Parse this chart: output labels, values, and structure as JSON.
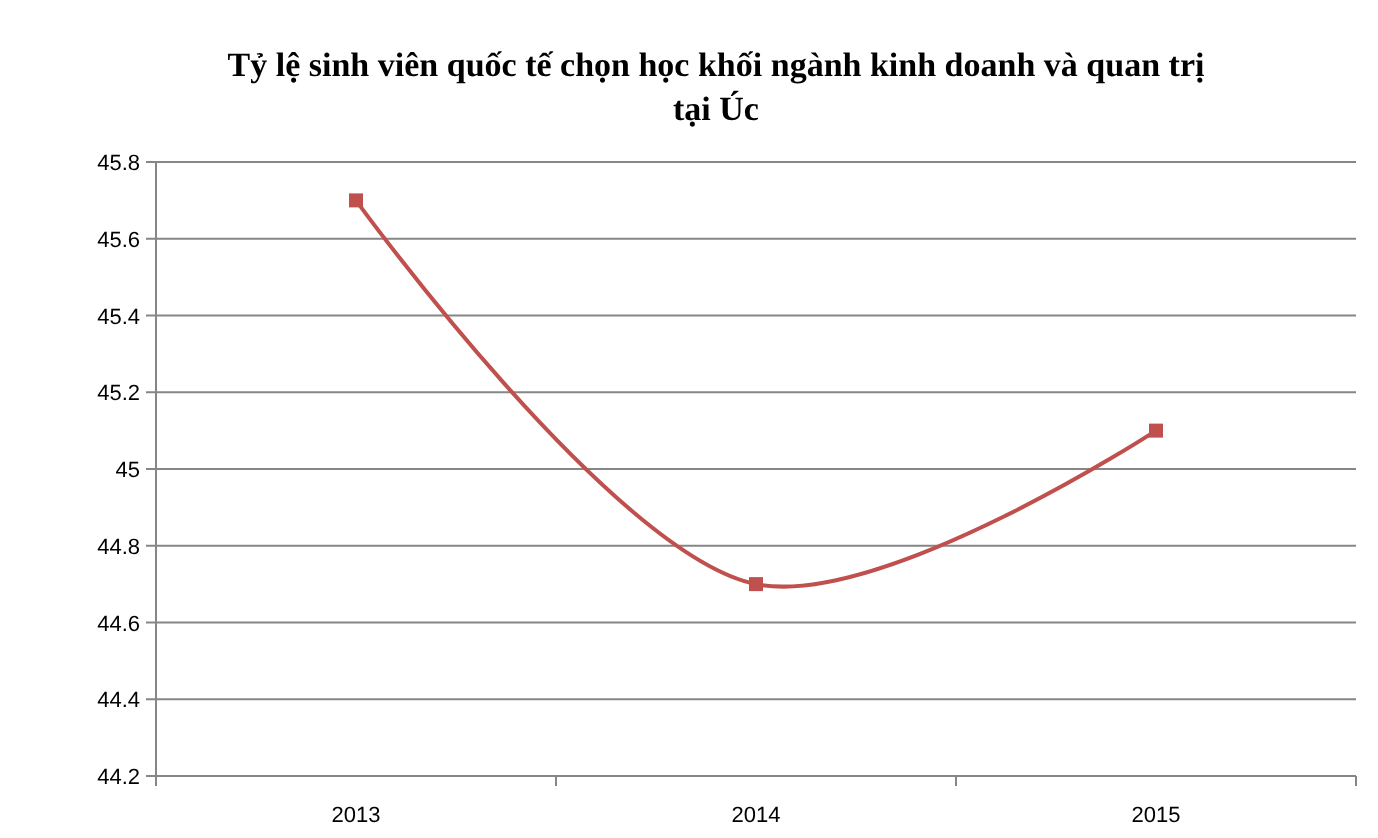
{
  "chart_data": {
    "type": "line",
    "title": "Tỷ lệ sinh viên quốc tế chọn học khối ngành kinh doanh và quan trị tại Úc",
    "categories": [
      "2013",
      "2014",
      "2015"
    ],
    "series": [
      {
        "color": "#c0504d",
        "values": [
          45.7,
          44.7,
          45.1
        ]
      }
    ],
    "ylim": [
      44.2,
      45.8
    ],
    "yticks": [
      44.2,
      44.4,
      44.6,
      44.8,
      45,
      45.2,
      45.4,
      45.6,
      45.8
    ],
    "grid": "y",
    "marker": "square",
    "line_style": "solid"
  }
}
